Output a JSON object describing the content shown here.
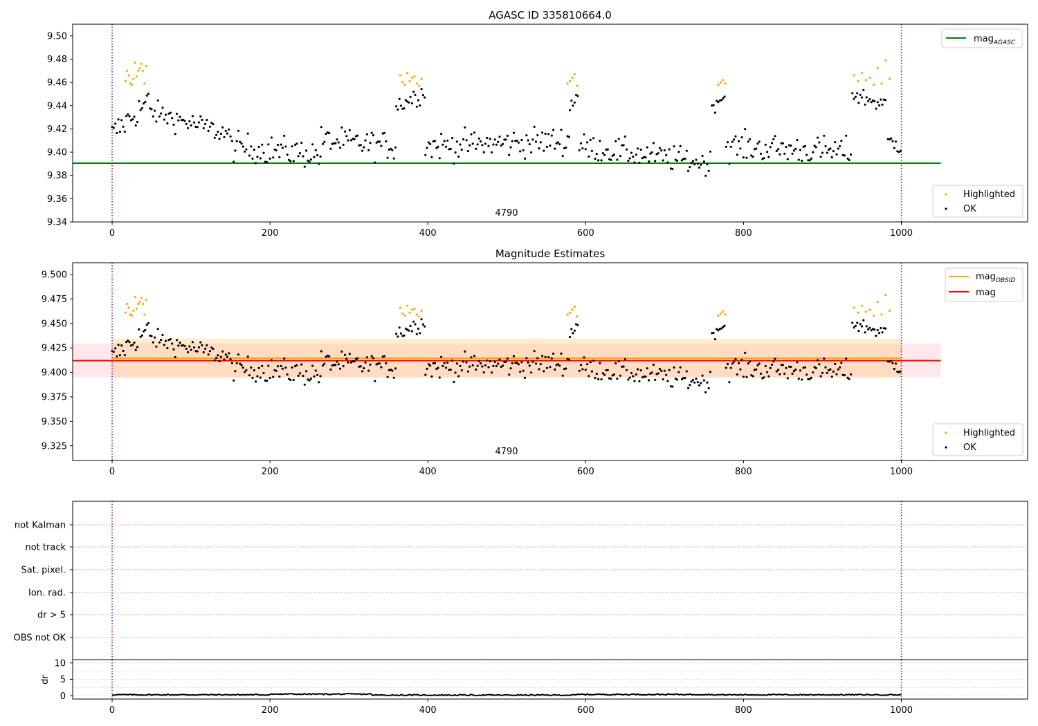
{
  "chart_data": [
    {
      "type": "scatter",
      "title": "AGASC ID 335810664.0",
      "xlabel": "",
      "ylabel": "",
      "xlim": [
        -50,
        1160
      ],
      "ylim": [
        9.34,
        9.51
      ],
      "xticks": [
        "0",
        "200",
        "400",
        "600",
        "800",
        "1000"
      ],
      "yticks": [
        "9.34",
        "9.36",
        "9.38",
        "9.40",
        "9.42",
        "9.44",
        "9.46",
        "9.48",
        "9.50"
      ],
      "obsid_label": "4790",
      "obs_bounds": [
        0,
        1000
      ],
      "lines": [
        {
          "name": "mag_AGASC",
          "label_main": "mag",
          "label_sub": "AGASC",
          "y": 9.3905,
          "x_range": [
            -50,
            1050
          ],
          "color": "#008000"
        }
      ],
      "legend_lines": {
        "position": "upper right"
      },
      "legend_points": {
        "position": "lower right"
      },
      "series": [
        {
          "name": "Highlighted",
          "color": "#FFA500",
          "x": [
            17,
            19,
            21,
            23,
            25,
            27,
            29,
            31,
            33,
            35,
            37,
            39,
            41,
            43,
            365,
            368,
            371,
            374,
            377,
            380,
            383,
            386,
            389,
            392,
            577,
            580,
            583,
            586,
            589,
            768,
            771,
            774,
            777,
            940,
            945,
            950,
            955,
            960,
            965,
            970,
            975,
            980,
            985
          ],
          "y": [
            9.461,
            9.47,
            9.466,
            9.459,
            9.458,
            9.463,
            9.477,
            9.465,
            9.47,
            9.472,
            9.476,
            9.47,
            9.459,
            9.474,
            9.466,
            9.46,
            9.458,
            9.468,
            9.461,
            9.464,
            9.465,
            9.459,
            9.457,
            9.463,
            9.459,
            9.461,
            9.464,
            9.467,
            9.457,
            9.458,
            9.46,
            9.462,
            9.459,
            9.466,
            9.461,
            9.468,
            9.462,
            9.464,
            9.458,
            9.472,
            9.459,
            9.479,
            9.463
          ]
        },
        {
          "name": "OK",
          "color": "#000000",
          "segments": [
            {
              "x0": 0,
              "x1": 48,
              "step": 2,
              "from": 9.415,
              "to": 9.445,
              "noise": 0.012
            },
            {
              "x0": 48,
              "x1": 150,
              "step": 2,
              "from": 9.435,
              "to": 9.415,
              "noise": 0.009
            },
            {
              "x0": 150,
              "x1": 265,
              "step": 2,
              "from": 9.405,
              "to": 9.398,
              "noise": 0.011
            },
            {
              "x0": 265,
              "x1": 360,
              "step": 2,
              "from": 9.41,
              "to": 9.405,
              "noise": 0.011
            },
            {
              "x0": 360,
              "x1": 397,
              "step": 2,
              "from": 9.44,
              "to": 9.452,
              "noise": 0.008
            },
            {
              "x0": 397,
              "x1": 580,
              "step": 2,
              "from": 9.405,
              "to": 9.41,
              "noise": 0.011
            },
            {
              "x0": 580,
              "x1": 592,
              "step": 2,
              "from": 9.44,
              "to": 9.452,
              "noise": 0.007
            },
            {
              "x0": 592,
              "x1": 760,
              "step": 2,
              "from": 9.405,
              "to": 9.39,
              "noise": 0.01
            },
            {
              "x0": 760,
              "x1": 778,
              "step": 2,
              "from": 9.44,
              "to": 9.45,
              "noise": 0.006
            },
            {
              "x0": 778,
              "x1": 938,
              "step": 2,
              "from": 9.405,
              "to": 9.4,
              "noise": 0.011
            },
            {
              "x0": 938,
              "x1": 982,
              "step": 2,
              "from": 9.45,
              "to": 9.44,
              "noise": 0.007
            },
            {
              "x0": 983,
              "x1": 1001,
              "step": 2,
              "from": 9.41,
              "to": 9.405,
              "noise": 0.007
            }
          ]
        }
      ]
    },
    {
      "type": "scatter",
      "title": "Magnitude Estimates",
      "xlabel": "",
      "ylabel": "",
      "xlim": [
        -50,
        1160
      ],
      "ylim": [
        9.31,
        9.512
      ],
      "xticks": [
        "0",
        "200",
        "400",
        "600",
        "800",
        "1000"
      ],
      "yticks": [
        "9.325",
        "9.350",
        "9.375",
        "9.400",
        "9.425",
        "9.450",
        "9.475",
        "9.500"
      ],
      "obsid_label": "4790",
      "obs_bounds": [
        0,
        1000
      ],
      "bands": [
        {
          "name": "mag band",
          "y0": 9.395,
          "y1": 9.4295,
          "x_range": [
            -50,
            1050
          ],
          "color": "#ff8c9c",
          "opacity": 0.2
        },
        {
          "name": "mag_OBSID band",
          "y0": 9.3946,
          "y1": 9.4345,
          "x_range": [
            0,
            1000
          ],
          "color": "#ffbf66",
          "opacity": 0.3
        }
      ],
      "lines": [
        {
          "name": "mag_OBSID",
          "label_main": "mag",
          "label_sub": "OBSID",
          "y": 9.4145,
          "x_range": [
            0,
            1000
          ],
          "color": "#FFA500"
        },
        {
          "name": "mag",
          "label_main": "mag",
          "label_sub": "",
          "y": 9.412,
          "x_range": [
            -50,
            1050
          ],
          "color": "#FF0000"
        }
      ],
      "legend_lines": {
        "position": "upper right"
      },
      "legend_points": {
        "position": "lower right"
      },
      "series": "same points as chart_data[0].series"
    },
    {
      "type": "table",
      "title": "",
      "xlabel": "",
      "ylabel": "",
      "xlim": [
        -50,
        1160
      ],
      "rows": [
        "not Kalman",
        "not track",
        "Sat. pixel.",
        "Ion. rad.",
        "dr > 5",
        "OBS not OK"
      ],
      "grid": true,
      "obs_bounds": [
        0,
        1000
      ]
    },
    {
      "type": "line",
      "title": "",
      "xlabel": "",
      "ylabel": "dr",
      "xlim": [
        -50,
        1160
      ],
      "ylim": [
        -1,
        11
      ],
      "yticks": [
        "0",
        "5",
        "10"
      ],
      "xticks": [
        "0",
        "200",
        "400",
        "600",
        "800",
        "1000"
      ],
      "obs_bounds": [
        0,
        1000
      ],
      "series": [
        {
          "name": "dr",
          "color": "#000000",
          "x_step": 2,
          "x_range": [
            0,
            1000
          ],
          "levels": [
            {
              "x0": 0,
              "x1": 200,
              "y": 0.3
            },
            {
              "x0": 200,
              "x1": 330,
              "y": 0.5
            },
            {
              "x0": 330,
              "x1": 590,
              "y": 0.2
            },
            {
              "x0": 590,
              "x1": 760,
              "y": 0.4
            },
            {
              "x0": 760,
              "x1": 1000,
              "y": 0.3
            }
          ]
        }
      ]
    }
  ],
  "legend": {
    "highlighted": "Highlighted",
    "ok": "OK"
  }
}
